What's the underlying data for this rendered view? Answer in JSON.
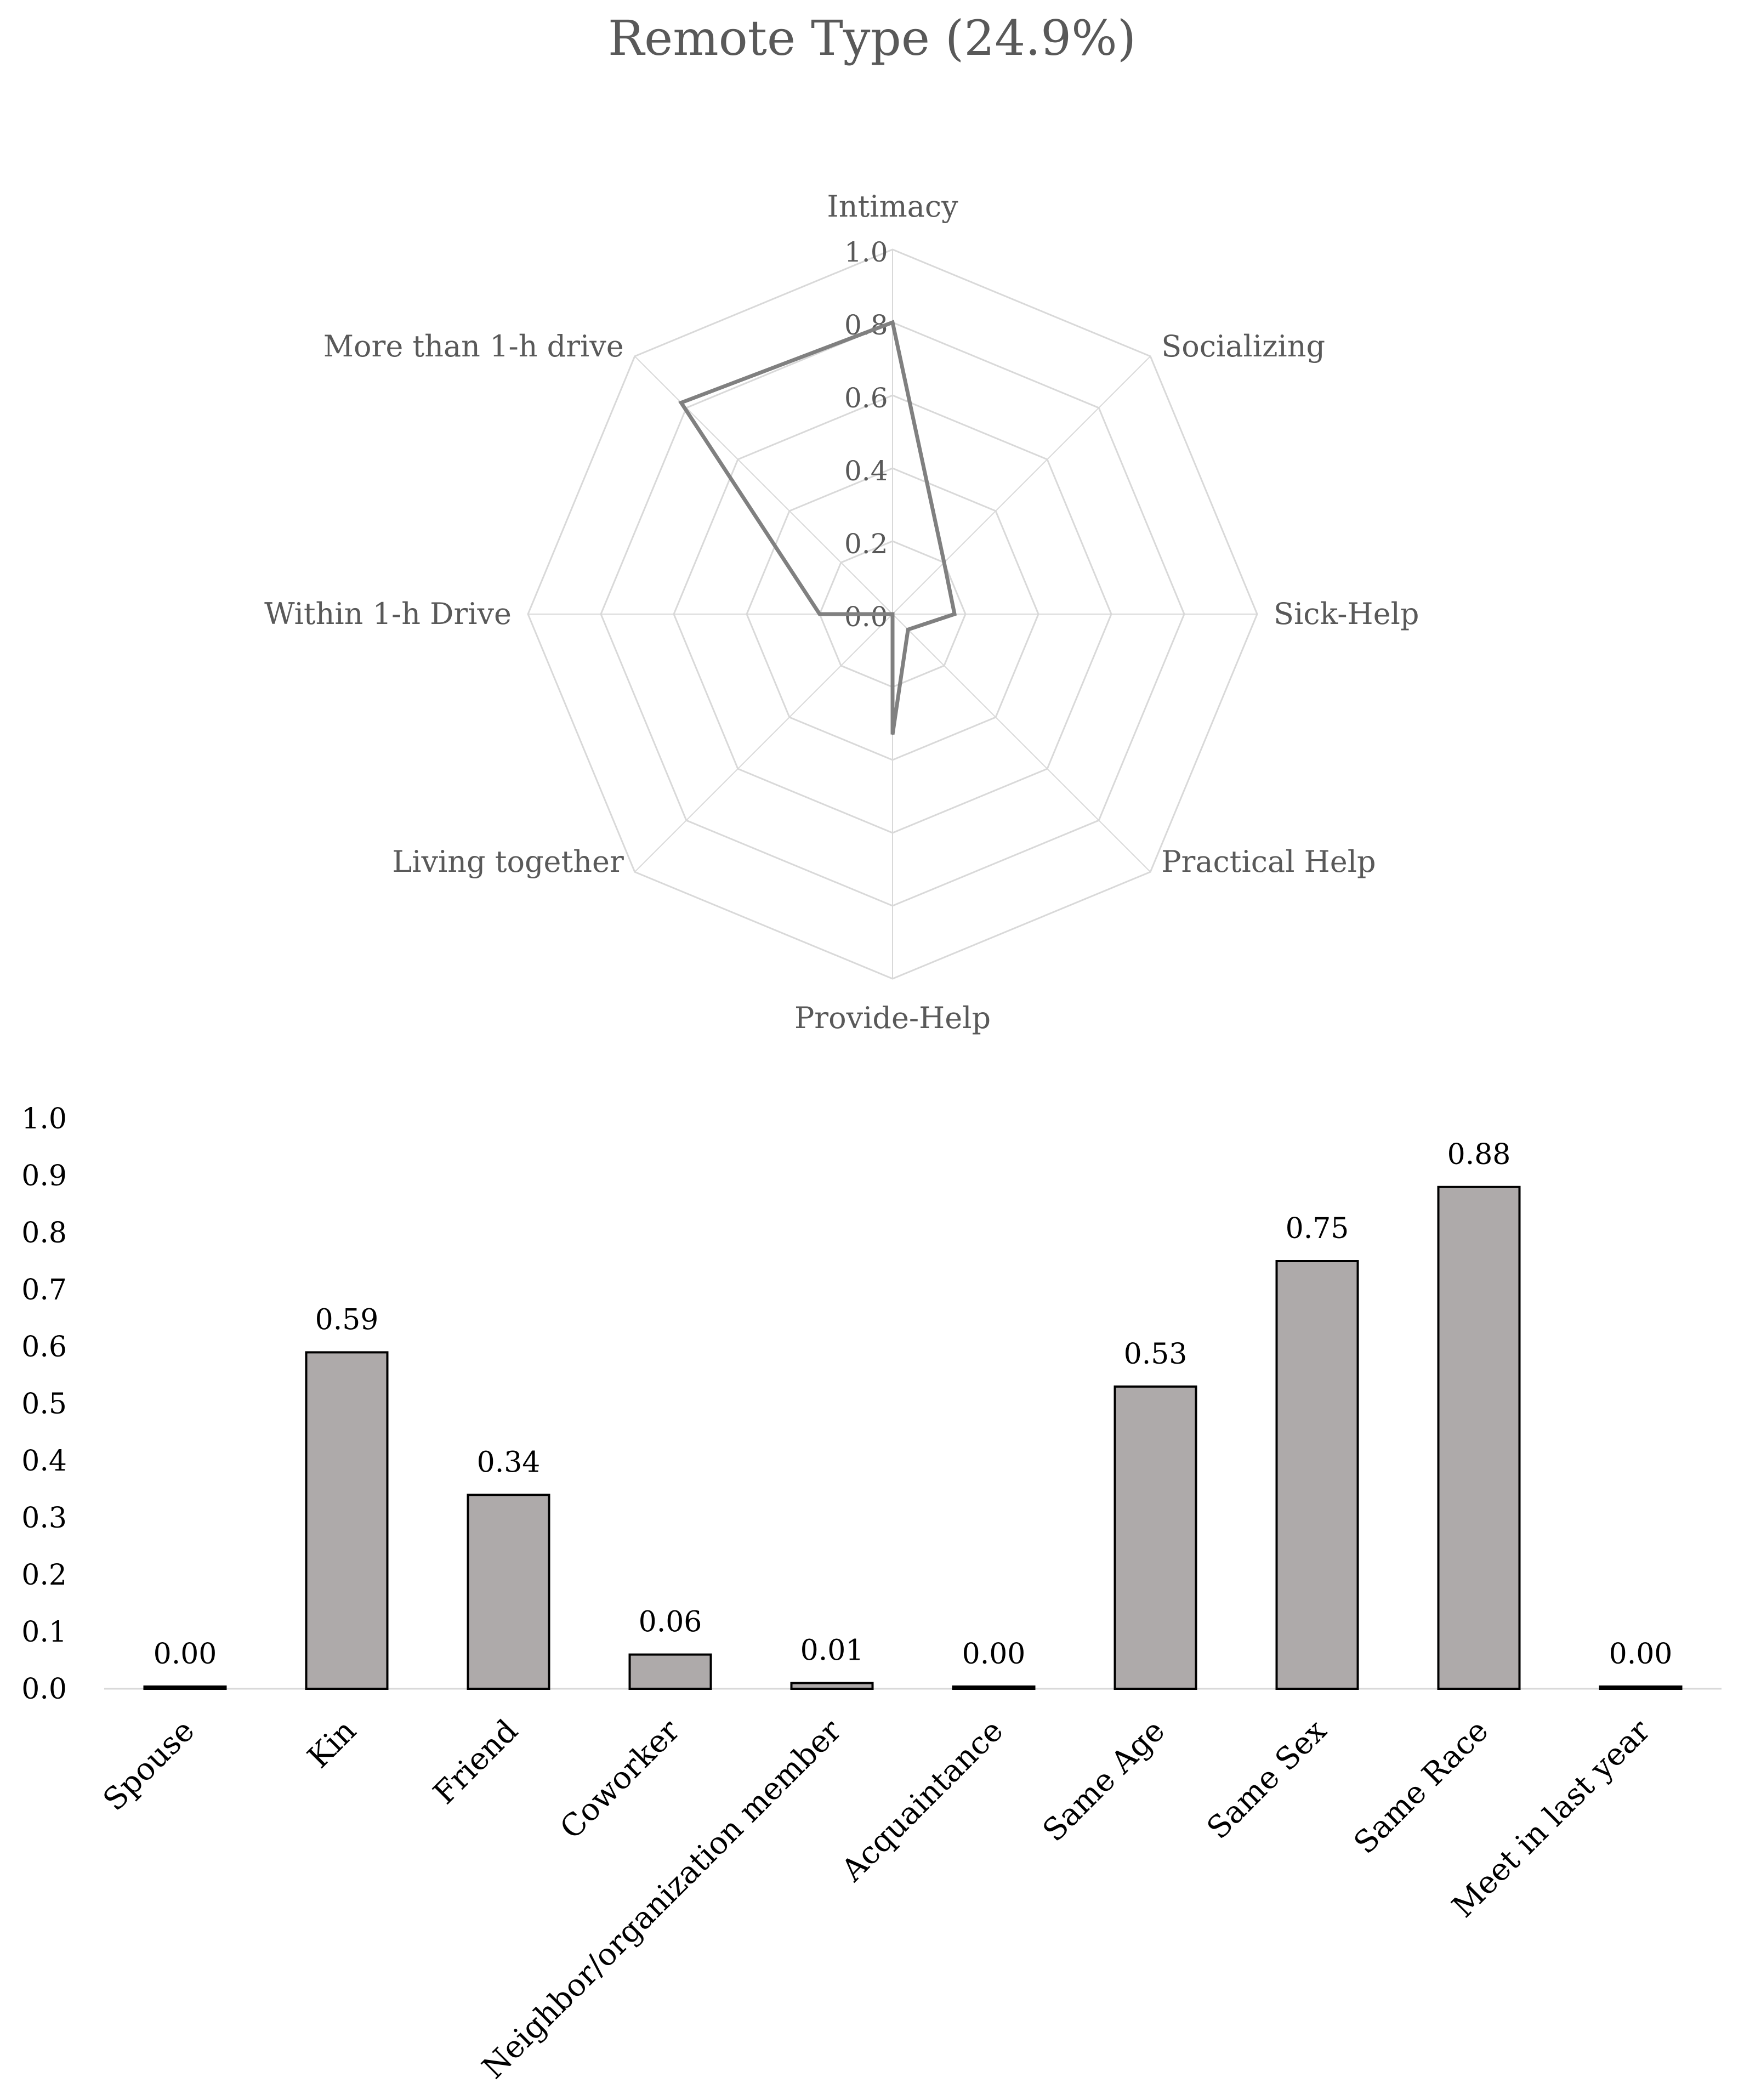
{
  "page": {
    "background": "#ffffff"
  },
  "chart_data": [
    {
      "type": "radar",
      "title": "Remote Type (24.9%)",
      "axes": [
        "Intimacy",
        "Socializing",
        "Sick-Help",
        "Practical Help",
        "Provide-Help",
        "Living together",
        "Within 1-h Drive",
        "More than 1-h drive"
      ],
      "rlim": [
        0.0,
        1.0
      ],
      "ticks": [
        0.0,
        0.2,
        0.4,
        0.6,
        0.8,
        1.0
      ],
      "tick_labels": [
        "0.0",
        "0.2",
        "0.4",
        "0.6",
        "0.8",
        "1.0"
      ],
      "series": [
        {
          "values": [
            0.8,
            0.2,
            0.17,
            0.06,
            0.33,
            0.0,
            0.2,
            0.82
          ],
          "color": "#808080"
        }
      ],
      "grid": true,
      "grid_color": "#d9d9d9"
    },
    {
      "type": "bar",
      "categories": [
        "Spouse",
        "Kin",
        "Friend",
        "Coworker",
        "Neighbor/organization member",
        "Acquaintance",
        "Same Age",
        "Same Sex",
        "Same Race",
        "Meet in last year"
      ],
      "values": [
        0.0,
        0.59,
        0.34,
        0.06,
        0.01,
        0.0,
        0.53,
        0.75,
        0.88,
        0.0
      ],
      "data_labels": [
        "0.00",
        "0.59",
        "0.34",
        "0.06",
        "0.01",
        "0.00",
        "0.53",
        "0.75",
        "0.88",
        "0.00"
      ],
      "ylim": [
        0.0,
        1.0
      ],
      "yticks": [
        "0.0",
        "0.1",
        "0.2",
        "0.3",
        "0.4",
        "0.5",
        "0.6",
        "0.7",
        "0.8",
        "0.9",
        "1.0"
      ],
      "xlabel": "",
      "ylabel": "",
      "grid": false,
      "bar_color": "#aeaaaa",
      "bar_edge_color": "#000000"
    }
  ]
}
